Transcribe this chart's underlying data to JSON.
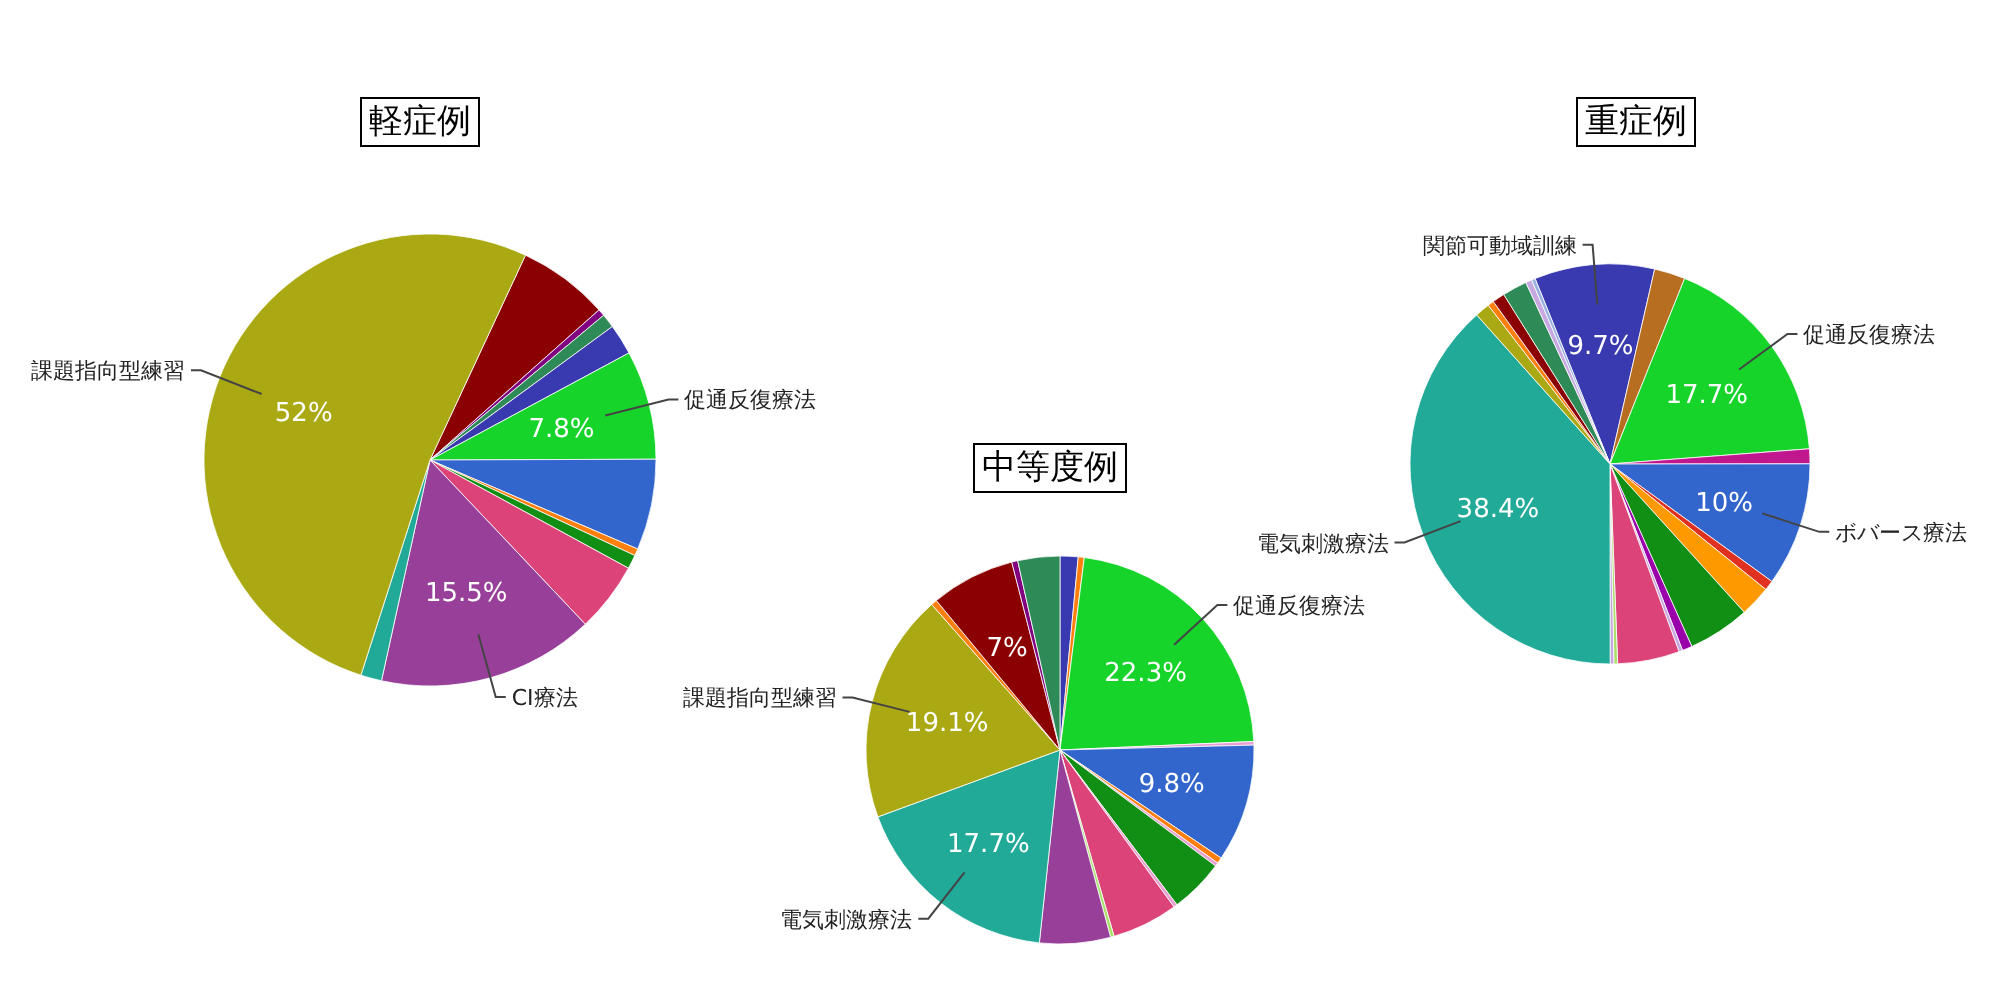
{
  "chart_data": [
    {
      "type": "pie",
      "title": "軽症例",
      "categories": [
        null,
        null,
        null,
        null,
        "促通反復療法",
        null,
        null,
        null,
        null,
        "CI療法",
        null,
        "課題指向型練習"
      ],
      "values": [
        6.5,
        0.5,
        1,
        2.2,
        7.8,
        6.5,
        0.5,
        1,
        5,
        15.5,
        1.5,
        52
      ],
      "value_labels": [
        null,
        null,
        null,
        null,
        "7.8%",
        null,
        null,
        null,
        null,
        "15.5%",
        null,
        "52%"
      ],
      "colors": [
        "#8b0000",
        "#800080",
        "#2e8b57",
        "#3a3ab0",
        "#17d42a",
        "#3366cc",
        "#ff7f0e",
        "#118f14",
        "#dc4479",
        "#984099",
        "#22aa99",
        "#aaa914"
      ]
    },
    {
      "type": "pie",
      "title": "中等度例",
      "categories": [
        null,
        null,
        "促通反復療法",
        null,
        null,
        null,
        null,
        null,
        null,
        null,
        null,
        null,
        "電気刺激療法",
        "課題指向型練習",
        null,
        null,
        null,
        null
      ],
      "values": [
        1.5,
        0.5,
        22.3,
        0.3,
        9.8,
        0.5,
        0.3,
        4.5,
        0.3,
        5.5,
        0.3,
        5.9,
        17.7,
        19.1,
        0.5,
        7,
        0.5,
        3.5
      ],
      "value_labels": [
        null,
        null,
        "22.3%",
        null,
        "9.8%",
        null,
        null,
        null,
        null,
        null,
        null,
        null,
        "17.7%",
        "19.1%",
        null,
        "7%",
        null,
        null
      ],
      "colors": [
        "#3a3ab0",
        "#ff7f0e",
        "#17d42a",
        "#e8a0d0",
        "#3366cc",
        "#ff7f0e",
        "#e8a0d0",
        "#118f14",
        "#e8a0d0",
        "#dc4479",
        "#a8e06a",
        "#984099",
        "#22aa99",
        "#aaa914",
        "#ff7f0e",
        "#8b0000",
        "#800080",
        "#2e8b57"
      ]
    },
    {
      "type": "pie",
      "title": "重症例",
      "categories": [
        "関節可動域訓練",
        null,
        "促通反復療法",
        null,
        "ボバース療法",
        null,
        null,
        null,
        null,
        null,
        null,
        null,
        null,
        "電気刺激療法",
        null,
        null,
        null,
        null,
        null,
        null
      ],
      "values": [
        9.7,
        2.5,
        17.7,
        1.2,
        10,
        0.8,
        2.5,
        5,
        0.8,
        0.3,
        5,
        0.3,
        0.3,
        38.4,
        1.2,
        0.5,
        1,
        2,
        0.5,
        0.3
      ],
      "value_labels": [
        "9.7%",
        null,
        "17.7%",
        null,
        "10%",
        null,
        null,
        null,
        null,
        null,
        null,
        null,
        null,
        "38.4%",
        null,
        null,
        null,
        null,
        null,
        null
      ],
      "colors": [
        "#3a3ab0",
        "#b76e20",
        "#17d42a",
        "#c0178f",
        "#3366cc",
        "#e03020",
        "#ff9900",
        "#118f14",
        "#9900aa",
        "#c8a8e0",
        "#dc4479",
        "#a8e06a",
        "#c8a8e0",
        "#22aa99",
        "#aaa914",
        "#ff7f0e",
        "#8b0000",
        "#2e8b57",
        "#c8a8e0",
        "#9ab0e0"
      ]
    }
  ]
}
